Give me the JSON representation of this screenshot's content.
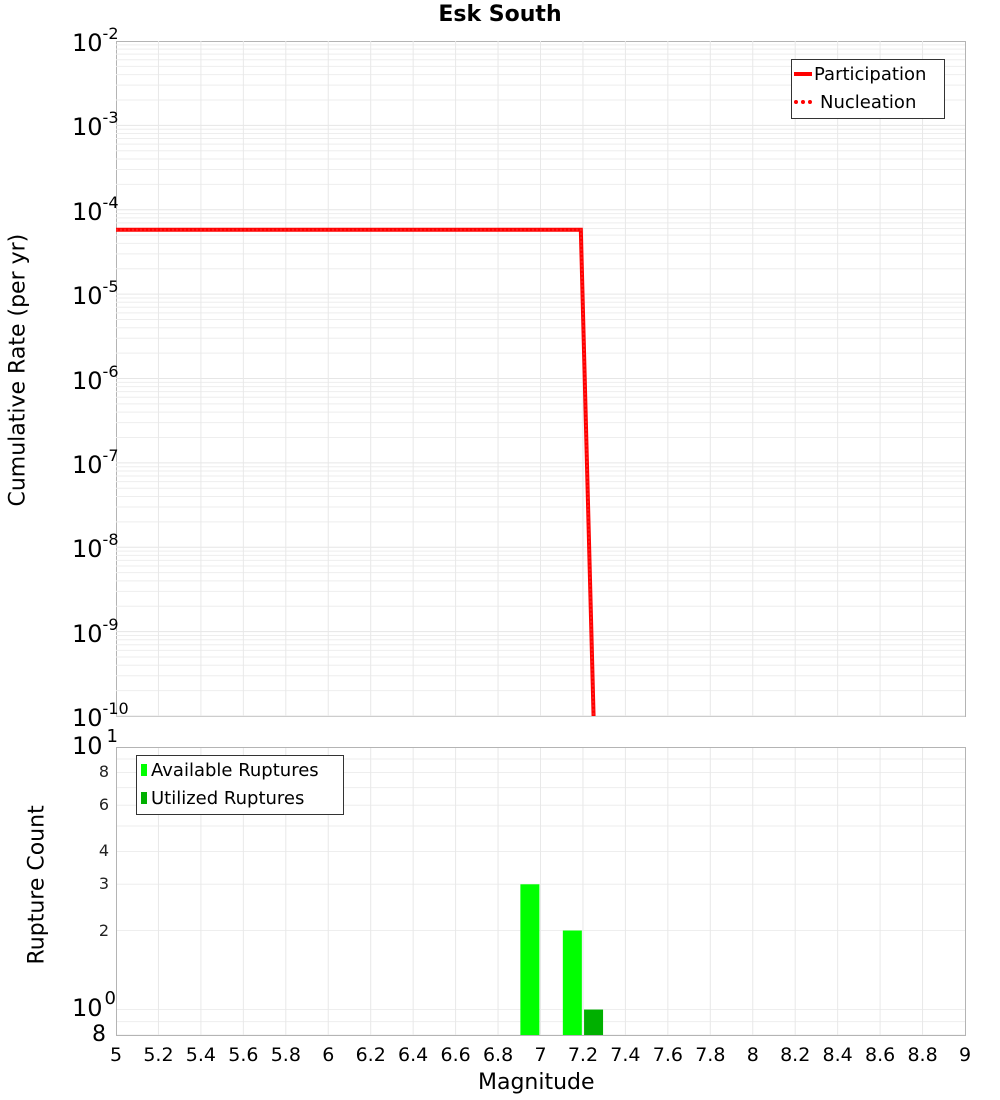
{
  "chart_data": [
    {
      "type": "line",
      "title": "Esk South",
      "xlabel": "",
      "ylabel": "Cumulative Rate (per yr)",
      "yscale": "log",
      "xlim": [
        5,
        9
      ],
      "ylim": [
        1e-10,
        0.01
      ],
      "grid": true,
      "legend_position": "upper right",
      "yticks": [
        "10^-2",
        "10^-3",
        "10^-4",
        "10^-5",
        "10^-6",
        "10^-7",
        "10^-8",
        "10^-9",
        "10^-10"
      ],
      "series": [
        {
          "name": "Participation",
          "style": "solid",
          "color": "#ff0000",
          "x": [
            5.0,
            7.19,
            7.25
          ],
          "y": [
            5.8e-05,
            5.8e-05,
            1e-10
          ]
        },
        {
          "name": "Nucleation",
          "style": "dotted",
          "color": "#ff0000",
          "x": [
            5.0,
            7.19,
            7.25
          ],
          "y": [
            5.8e-05,
            5.8e-05,
            1e-10
          ]
        }
      ]
    },
    {
      "type": "bar",
      "title": "",
      "xlabel": "Magnitude",
      "ylabel": "Rupture Count",
      "yscale": "log",
      "xlim": [
        5,
        9
      ],
      "ylim": [
        0.8,
        10
      ],
      "grid": true,
      "legend_position": "upper left",
      "xticks": [
        "5",
        "5.2",
        "5.4",
        "5.6",
        "5.8",
        "6",
        "6.2",
        "6.4",
        "6.6",
        "6.8",
        "7",
        "7.2",
        "7.4",
        "7.6",
        "7.8",
        "8",
        "8.2",
        "8.4",
        "8.6",
        "8.8",
        "9"
      ],
      "yticks": [
        "8",
        "10^0",
        "2",
        "3",
        "4",
        "6",
        "8",
        "10^1"
      ],
      "series": [
        {
          "name": "Available Ruptures",
          "color": "#00ff00",
          "x": [
            6.95,
            7.15
          ],
          "values": [
            3,
            2
          ]
        },
        {
          "name": "Utilized Ruptures",
          "color": "#00b000",
          "x": [
            7.25
          ],
          "values": [
            1
          ]
        }
      ]
    }
  ],
  "title": "Esk South",
  "top_plot": {
    "ylabel": "Cumulative Rate (per yr)",
    "yticks": [
      {
        "base": "10",
        "exp": "-2"
      },
      {
        "base": "10",
        "exp": "-3"
      },
      {
        "base": "10",
        "exp": "-4"
      },
      {
        "base": "10",
        "exp": "-5"
      },
      {
        "base": "10",
        "exp": "-6"
      },
      {
        "base": "10",
        "exp": "-7"
      },
      {
        "base": "10",
        "exp": "-8"
      },
      {
        "base": "10",
        "exp": "-9"
      },
      {
        "base": "10",
        "exp": "-10"
      }
    ],
    "legend": [
      {
        "label": "Participation",
        "color": "#ff0000",
        "style": "solid"
      },
      {
        "label": "Nucleation",
        "color": "#ff0000",
        "style": "dotted"
      }
    ]
  },
  "bottom_plot": {
    "ylabel": "Rupture Count",
    "xlabel": "Magnitude",
    "ytick_top": {
      "base": "10",
      "exp": "1"
    },
    "ytick_one": {
      "base": "10",
      "exp": "0"
    },
    "ytick_bottom": "8",
    "ytick_minor": [
      "8",
      "6",
      "4",
      "3",
      "2"
    ],
    "legend": [
      {
        "label": "Available Ruptures",
        "color": "#00ff00"
      },
      {
        "label": "Utilized Ruptures",
        "color": "#00b000"
      }
    ],
    "xticks": [
      "5",
      "5.2",
      "5.4",
      "5.6",
      "5.8",
      "6",
      "6.2",
      "6.4",
      "6.6",
      "6.8",
      "7",
      "7.2",
      "7.4",
      "7.6",
      "7.8",
      "8",
      "8.2",
      "8.4",
      "8.6",
      "8.8",
      "9"
    ]
  }
}
